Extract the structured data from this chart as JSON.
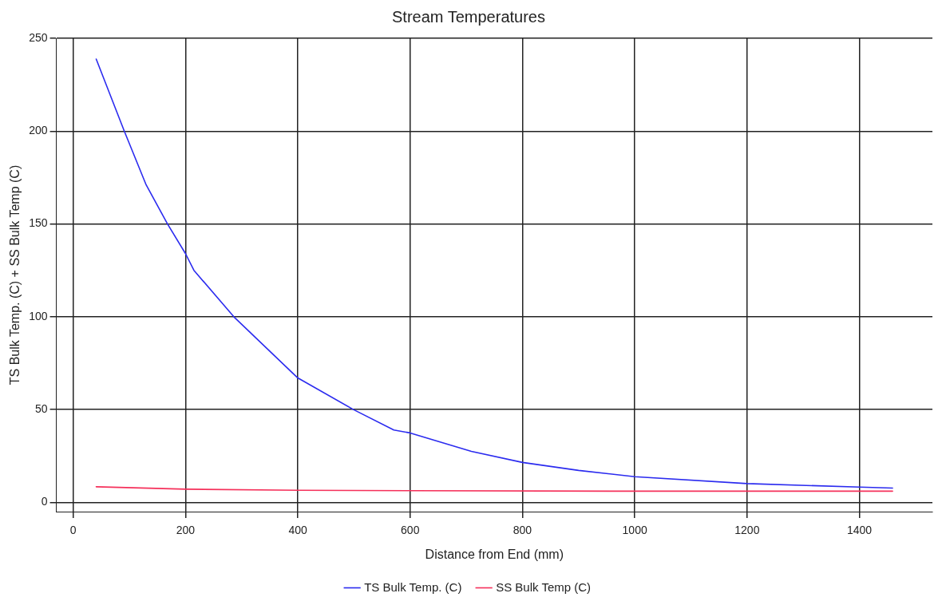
{
  "chart_data": {
    "type": "line",
    "title": "Stream Temperatures",
    "xlabel": "Distance from End (mm)",
    "ylabel": "TS Bulk Temp. (C) + SS Bulk Temp (C)",
    "xlim": [
      -30,
      1530
    ],
    "xticks": [
      0,
      200,
      400,
      600,
      800,
      1000,
      1200,
      1400
    ],
    "ylim": [
      -5,
      250
    ],
    "yticks": [
      0,
      50,
      100,
      150,
      200,
      250
    ],
    "grid": true,
    "legend": "bottom",
    "marker": "none",
    "line_style": "solid",
    "series": [
      {
        "name": "TS Bulk Temp. (C)",
        "color": "#2b2bef",
        "x": [
          41,
          91,
          130,
          168,
          200,
          215,
          286,
          400,
          499,
          571,
          600,
          709,
          800,
          900,
          1000,
          1200,
          1400,
          1459
        ],
        "values": [
          238.8,
          200,
          171,
          150,
          134,
          125,
          100,
          67,
          50,
          39,
          37.4,
          27.5,
          21.5,
          17.2,
          13.8,
          10.1,
          8.2,
          7.7
        ]
      },
      {
        "name": "SS Bulk Temp (C)",
        "color": "#f5305a",
        "x": [
          41,
          200,
          400,
          600,
          1000,
          1459
        ],
        "values": [
          8.4,
          7.1,
          6.5,
          6.3,
          6.0,
          6.0
        ]
      }
    ]
  }
}
